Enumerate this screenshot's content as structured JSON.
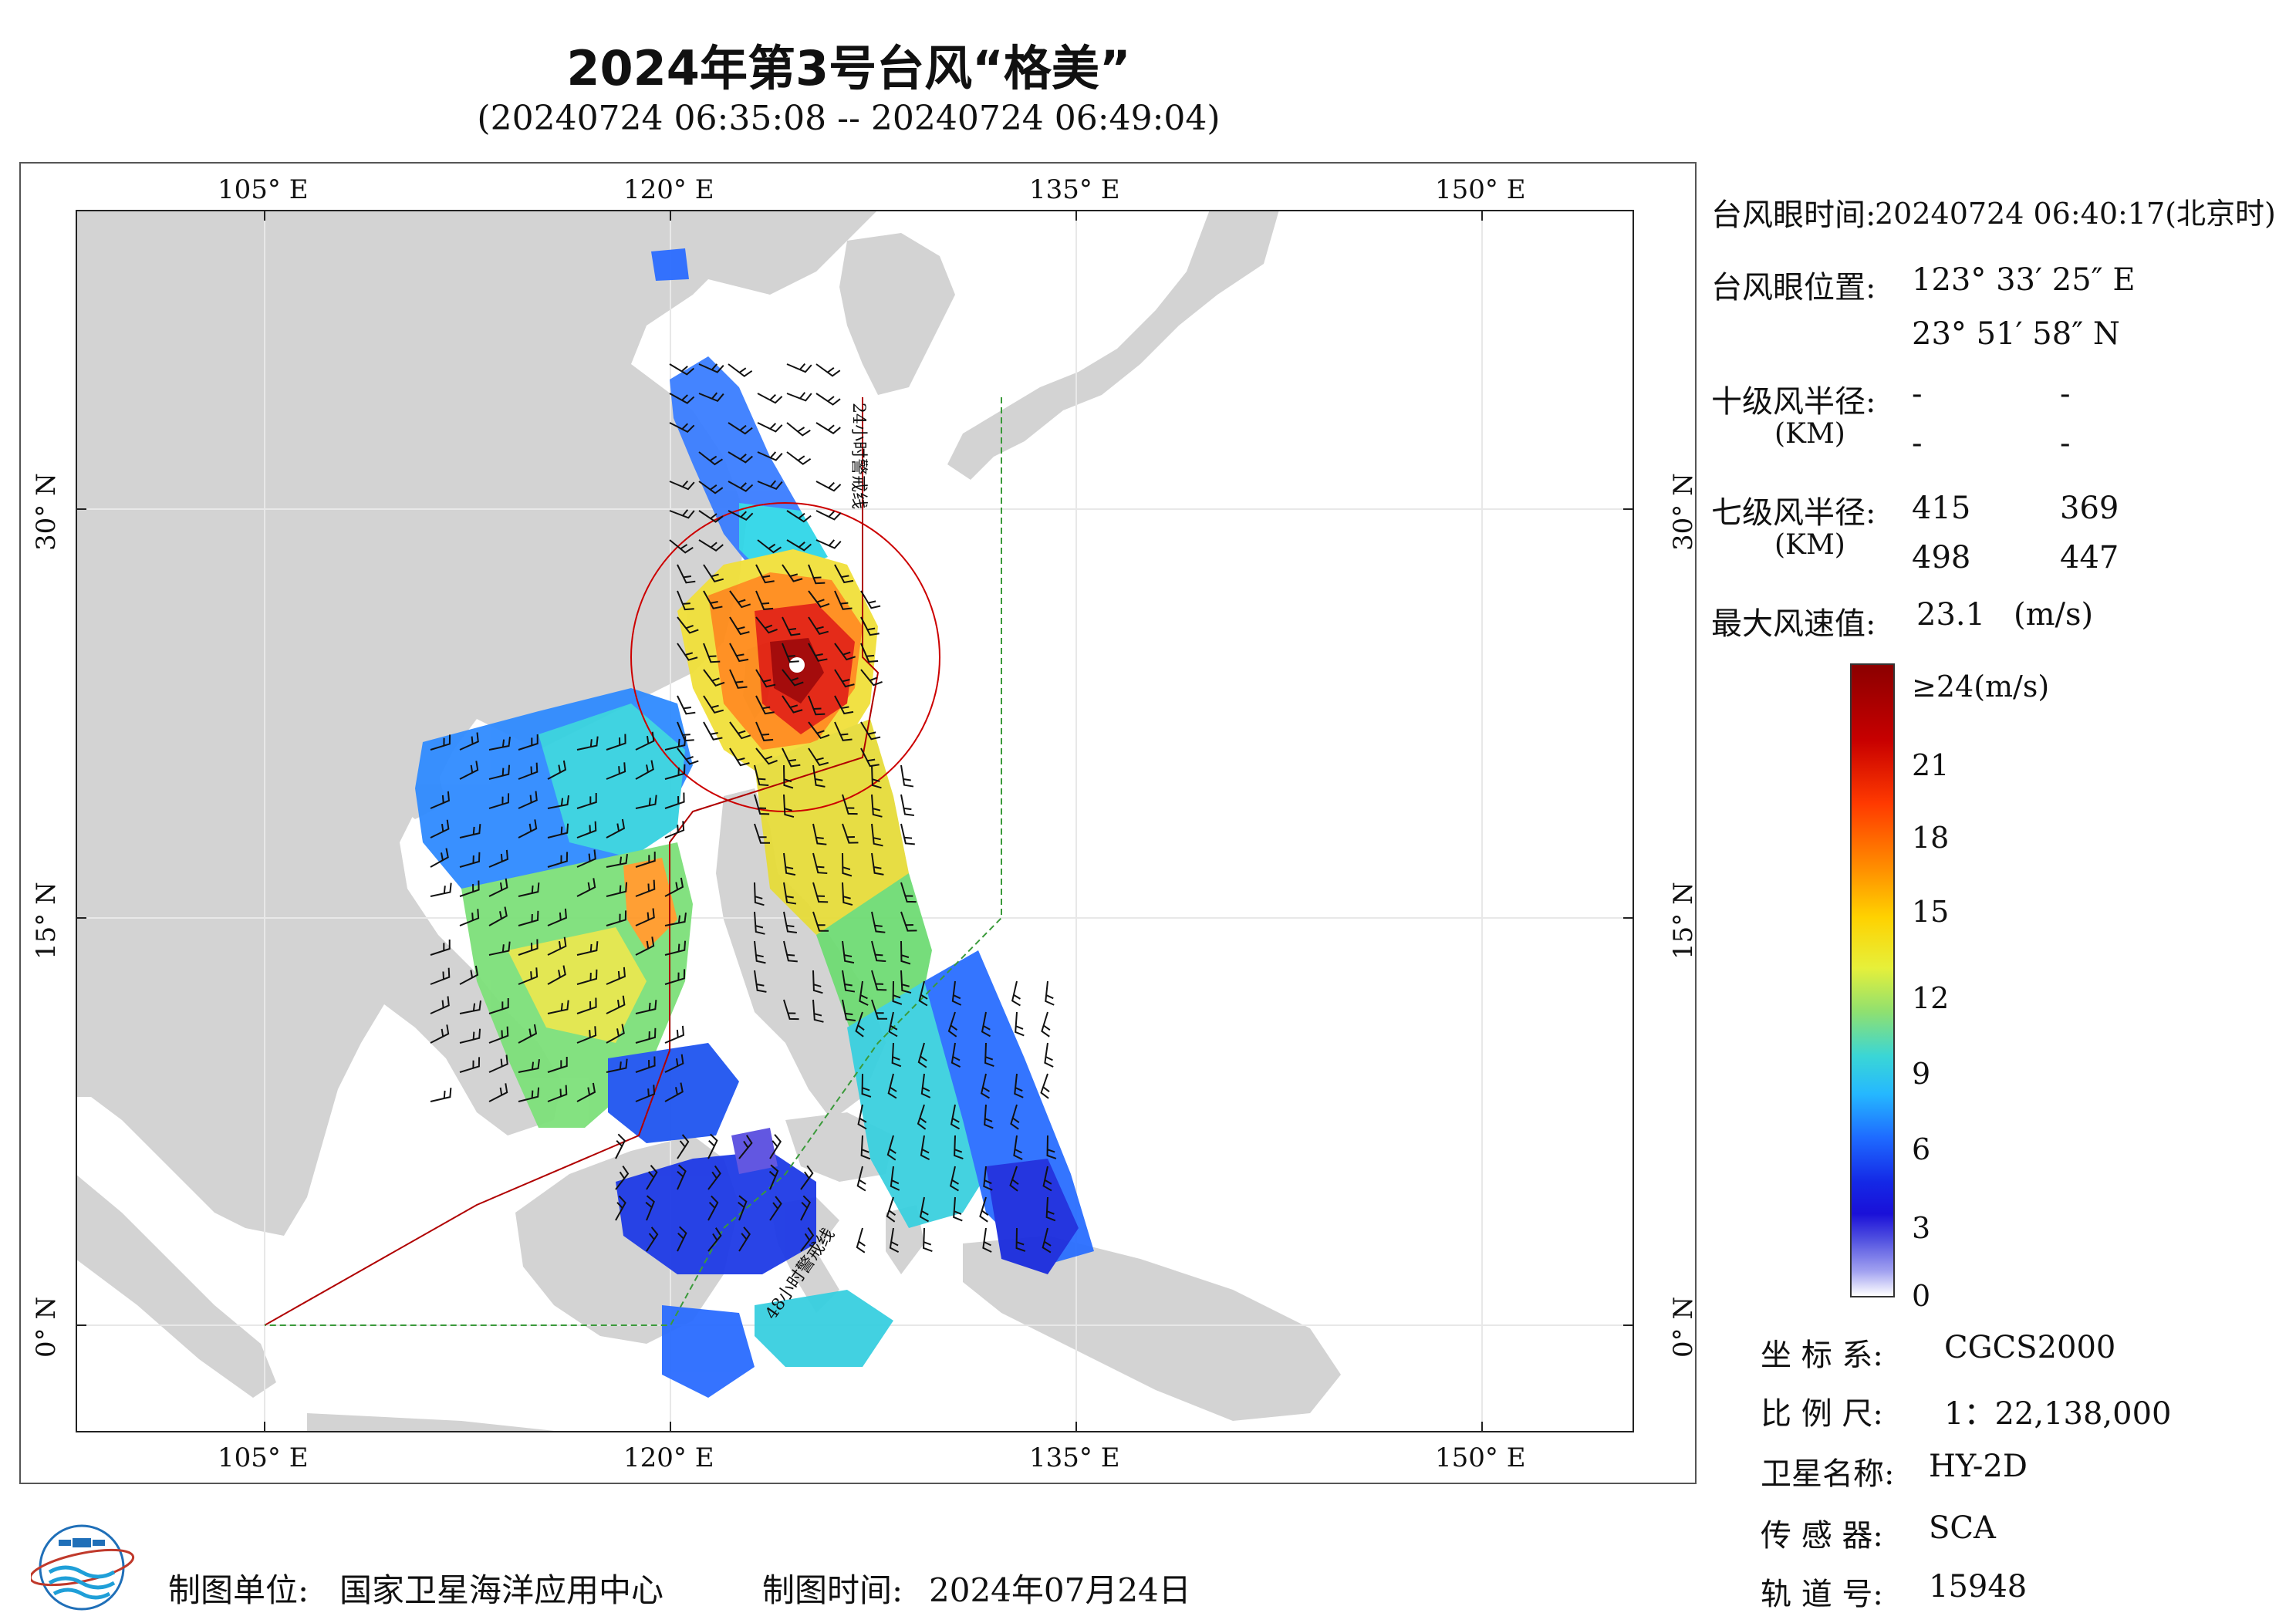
{
  "header": {
    "title": "2024年第3号台风“格美”",
    "subtitle": "(20240724 06:35:08 -- 20240724 06:49:04)"
  },
  "map": {
    "lon_labels": [
      "105° E",
      "120° E",
      "135° E",
      "150° E"
    ],
    "lat_labels": [
      "30° N",
      "15° N",
      "0° N"
    ],
    "warning_24h_label": "24小时警戒线",
    "warning_48h_label": "48小时警戒线",
    "colors": {
      "land": "#d3d3d3",
      "sea": "#ffffff",
      "warning24": "#b00000",
      "warning48": "#3a9a3a",
      "typhoon_circle": "#cc0000"
    }
  },
  "info": {
    "eye_time_label": "台风眼时间:",
    "eye_time_value": "20240724 06:40:17(北京时)",
    "eye_pos_label": "台风眼位置:",
    "eye_lon": "123° 33′ 25″ E",
    "eye_lat": "23° 51′ 58″ N",
    "r10_label": "十级风半径:",
    "km_label": "(KM)",
    "r10_values": [
      "-",
      "-",
      "-",
      "-"
    ],
    "r7_label": "七级风半径:",
    "r7_values": [
      "415",
      "369",
      "498",
      "447"
    ],
    "max_wind_label": "最大风速值:",
    "max_wind_value": "23.1",
    "max_wind_unit": "(m/s)"
  },
  "colorbar": {
    "top_label": "≥24(m/s)",
    "tick_labels": [
      "21",
      "18",
      "15",
      "12",
      "9",
      "6",
      "3",
      "0"
    ]
  },
  "meta": {
    "crs_label": "坐 标 系:",
    "crs_value": "CGCS2000",
    "scale_label": "比 例 尺:",
    "scale_value": "1：22,138,000",
    "satellite_label": "卫星名称:",
    "satellite_value": "HY-2D",
    "sensor_label": "传 感 器:",
    "sensor_value": "SCA",
    "orbit_label": "轨 道 号:",
    "orbit_value": "15948"
  },
  "footer": {
    "unit_label": "制图单位:",
    "unit_value": "国家卫星海洋应用中心",
    "date_label": "制图时间:",
    "date_value": "2024年07月24日"
  }
}
